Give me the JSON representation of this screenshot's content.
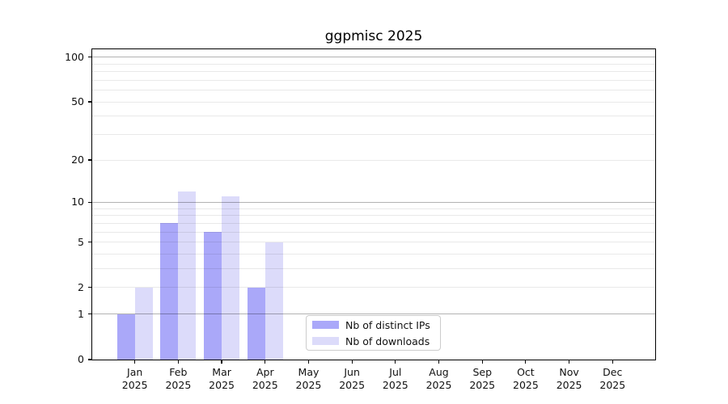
{
  "window": {
    "background": "#ffffff"
  },
  "chart_data": {
    "type": "bar",
    "title": "ggpmisc 2025",
    "categories": [
      "Jan",
      "Feb",
      "Mar",
      "Apr",
      "May",
      "Jun",
      "Jul",
      "Aug",
      "Sep",
      "Oct",
      "Nov",
      "Dec"
    ],
    "x_year_label": "2025",
    "series": [
      {
        "name": "Nb of distinct IPs",
        "slug": "distinct-ips",
        "color": "#aaa8f9",
        "values": [
          1,
          7,
          6,
          2,
          0,
          0,
          0,
          0,
          0,
          0,
          0,
          0
        ]
      },
      {
        "name": "Nb of downloads",
        "slug": "downloads",
        "color": "#dcdbfa",
        "values": [
          2,
          12,
          11,
          5,
          0,
          0,
          0,
          0,
          0,
          0,
          0,
          0
        ]
      }
    ],
    "y_axis": {
      "scale": "log10(1+x)",
      "tick_labels": [
        0,
        1,
        2,
        5,
        10,
        20,
        50,
        100
      ],
      "major_gridlines": [
        1,
        10,
        100
      ],
      "minor_gridlines": [
        2,
        3,
        4,
        5,
        6,
        7,
        8,
        9,
        20,
        30,
        40,
        50,
        60,
        70,
        80,
        90
      ],
      "max_value": 112
    },
    "grid": true,
    "legend_position": "lower-center"
  },
  "colors": {
    "spine": "#000000",
    "tick_text": "#111111",
    "grid_major": "rgba(0,0,0,0.30)",
    "grid_minor": "rgba(0,0,0,0.085)",
    "legend_border": "#cccccc",
    "legend_background": "#ffffff"
  }
}
